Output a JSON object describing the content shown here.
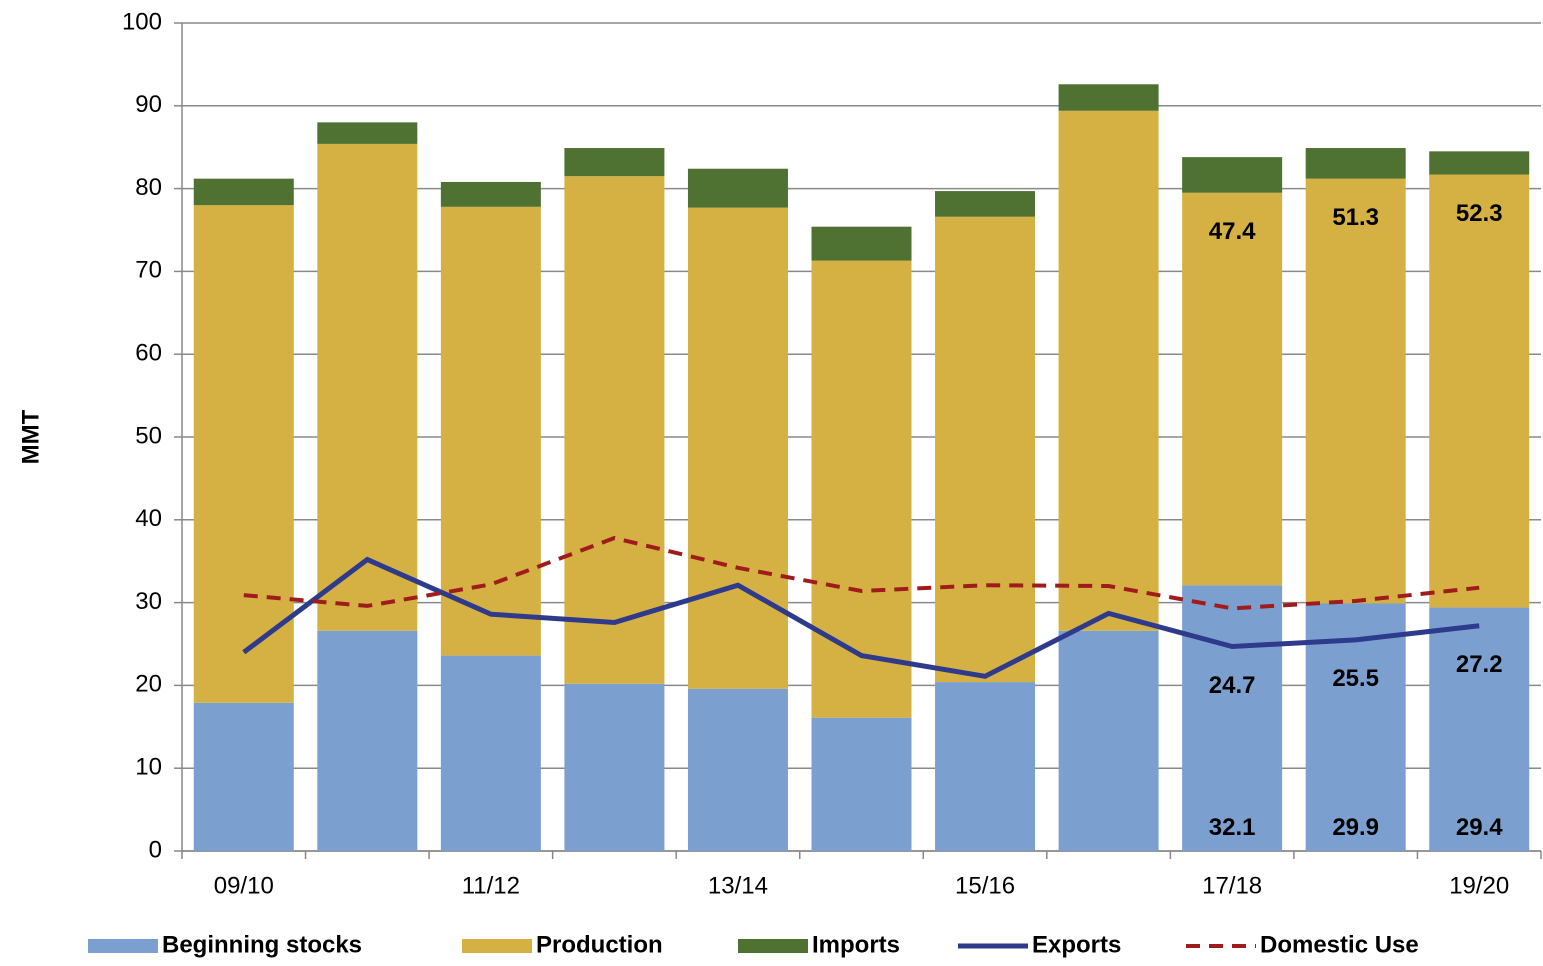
{
  "chart_data": {
    "type": "stacked_bar_line",
    "y_label": "MMT",
    "categories": [
      "09/10",
      null,
      "11/12",
      null,
      "13/14",
      null,
      "15/16",
      null,
      "17/18",
      null,
      "19/20"
    ],
    "ylim": [
      0,
      100
    ],
    "yticks": [
      0,
      10,
      20,
      30,
      40,
      50,
      60,
      70,
      80,
      90,
      100
    ],
    "grid": true,
    "series": [
      {
        "name": "Beginning stocks",
        "type": "bar",
        "color": "#7ba0d0",
        "values": [
          17.9,
          26.6,
          23.6,
          20.2,
          19.6,
          16.1,
          20.4,
          26.6,
          32.1,
          29.9,
          29.4
        ],
        "value_labels": [
          null,
          null,
          null,
          null,
          null,
          null,
          null,
          null,
          "32.1",
          "29.9",
          "29.4"
        ]
      },
      {
        "name": "Production",
        "type": "bar",
        "color": "#d4b142",
        "values": [
          60.1,
          58.8,
          54.2,
          61.3,
          58.1,
          55.2,
          56.2,
          62.8,
          47.4,
          51.3,
          52.3
        ],
        "value_labels": [
          null,
          null,
          null,
          null,
          null,
          null,
          null,
          null,
          "47.4",
          "51.3",
          "52.3"
        ]
      },
      {
        "name": "Imports",
        "type": "bar",
        "color": "#4f7132",
        "values": [
          3.2,
          2.6,
          3.0,
          3.4,
          4.7,
          4.1,
          3.1,
          3.2,
          4.3,
          3.7,
          2.8
        ]
      },
      {
        "name": "Exports",
        "type": "line",
        "color": "#2e3a8c",
        "dash": false,
        "values": [
          24.0,
          35.2,
          28.6,
          27.6,
          32.1,
          23.6,
          21.1,
          28.7,
          24.7,
          25.5,
          27.2
        ],
        "value_labels": [
          null,
          null,
          null,
          null,
          null,
          null,
          null,
          null,
          "24.7",
          "25.5",
          "27.2"
        ]
      },
      {
        "name": "Domestic Use",
        "type": "line",
        "color": "#a01c1c",
        "dash": true,
        "values": [
          30.9,
          29.6,
          32.2,
          37.8,
          34.2,
          31.4,
          32.1,
          32.0,
          29.3,
          30.2,
          31.8
        ]
      }
    ]
  }
}
